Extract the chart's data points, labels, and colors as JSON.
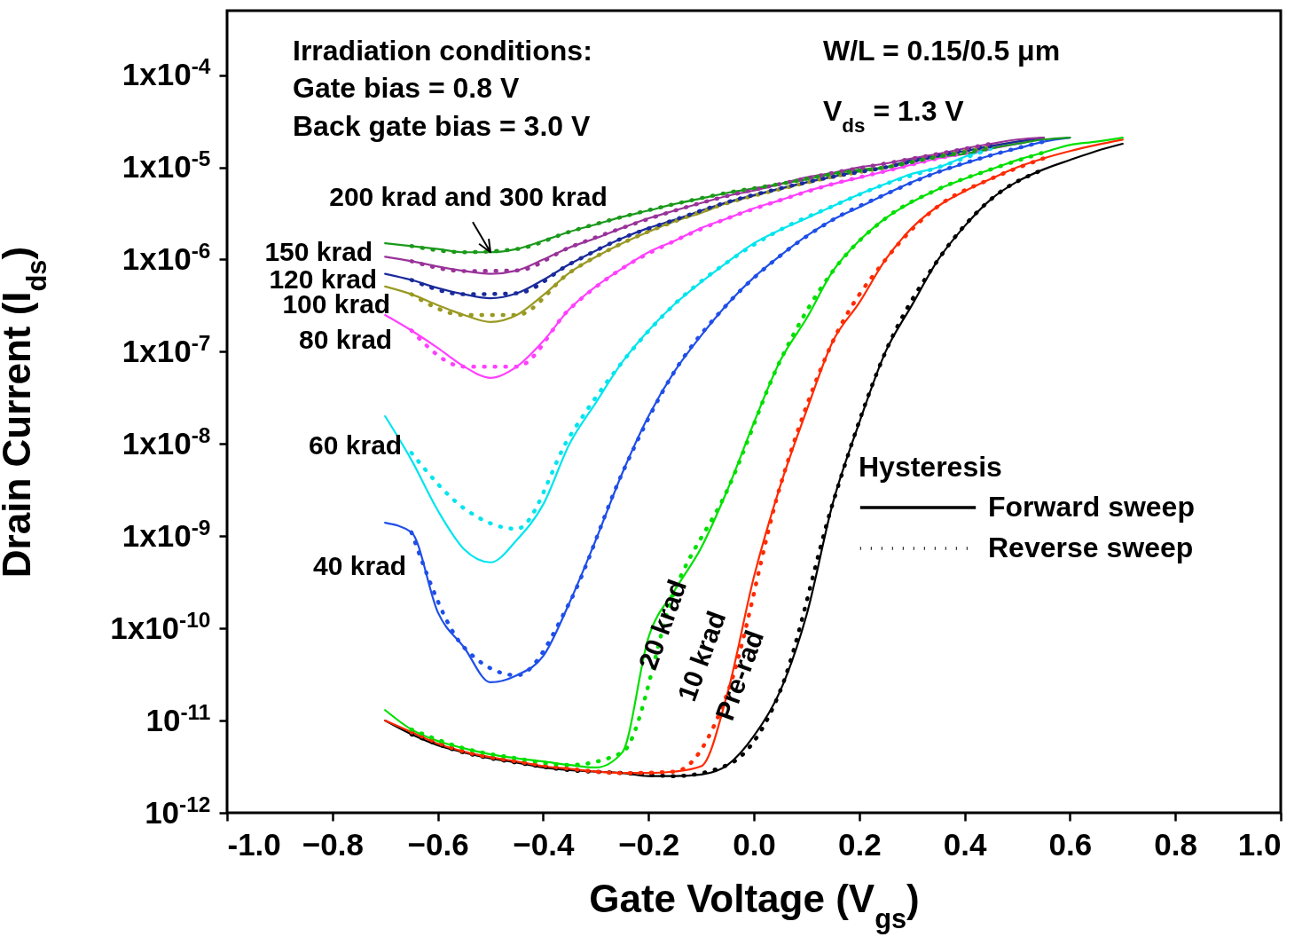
{
  "chart_data": {
    "type": "line",
    "xlabel": "Gate Voltage (V$_{gs}$)",
    "ylabel": "Drain Current (I$_{ds}$)",
    "legend_title": "Hysteresis",
    "log": true,
    "xlim": [
      -1,
      1
    ],
    "xticks": [
      {
        "value": -1,
        "label": "-1.0"
      },
      -0.8,
      -0.6,
      -0.4,
      -0.2,
      {
        "value": 0,
        "label": "0.0"
      },
      0.2,
      0.4,
      0.6,
      0.8,
      {
        "value": 1,
        "label": "1.0"
      }
    ],
    "ylim": [
      1e-12,
      0.0005
    ],
    "yticks": [
      {
        "value": 1e-12,
        "label": "10$^{-12}$"
      },
      {
        "value": 1e-11,
        "label": "10$^{-11}$"
      },
      {
        "value": 1e-10,
        "label": "1x10$^{-10}$"
      },
      {
        "value": 1e-09,
        "label": "1x10$^{-9}$"
      },
      {
        "value": 1e-08,
        "label": "1x10$^{-8}$"
      },
      {
        "value": 1e-07,
        "label": "1x10$^{-7}$"
      },
      {
        "value": 1e-06,
        "label": "1x10$^{-6}$"
      },
      {
        "value": 1e-05,
        "label": "1x10$^{-5}$"
      },
      {
        "value": 0.0001,
        "label": "1x10$^{-4}$"
      }
    ],
    "x": [
      -0.7,
      -0.65,
      -0.6,
      -0.55,
      -0.5,
      -0.45,
      -0.4,
      -0.35,
      -0.3,
      -0.25,
      -0.2,
      -0.15,
      -0.1,
      -0.05,
      0,
      0.05,
      0.1,
      0.15,
      0.2,
      0.25,
      0.3,
      0.35,
      0.4,
      0.45,
      0.5,
      0.55,
      0.6,
      0.65,
      0.7
    ],
    "series": [
      {
        "color": "#000000",
        "line_style": "solid",
        "values": [
          1e-11,
          7.1e-12,
          5.4e-12,
          4.5e-12,
          3.9e-12,
          3.5e-12,
          3.1e-12,
          2.9e-12,
          2.8e-12,
          2.7e-12,
          2.5e-12,
          2.5e-12,
          2.6e-12,
          3.3e-12,
          6.8e-12,
          2.1e-11,
          1.4e-10,
          2.3e-09,
          1.7e-08,
          1e-07,
          3.2e-07,
          1e-06,
          2.3e-06,
          4.5e-06,
          7e-06,
          9.5e-06,
          1.2e-05,
          1.5e-05,
          1.8e-05
        ]
      },
      {
        "color": "#ff2a00",
        "line_style": "solid",
        "values": [
          1e-11,
          7.5e-12,
          5.6e-12,
          4.6e-12,
          4e-12,
          3.6e-12,
          3.2e-12,
          3e-12,
          2.8e-12,
          2.7e-12,
          2.7e-12,
          2.8e-12,
          3.2e-12,
          2e-11,
          3.6e-10,
          3.5e-09,
          2.3e-08,
          1.3e-07,
          3.4e-07,
          1e-06,
          2.2e-06,
          3.8e-06,
          5.5e-06,
          7.5e-06,
          1e-05,
          1.25e-05,
          1.5e-05,
          1.75e-05,
          2e-05
        ]
      },
      {
        "color": "#00e000",
        "line_style": "solid",
        "values": [
          1.3e-11,
          8e-12,
          6e-12,
          5e-12,
          4.3e-12,
          3.9e-12,
          3.6e-12,
          3.3e-12,
          3.1e-12,
          4.5e-12,
          8e-11,
          2.6e-10,
          7.5e-10,
          3.2e-09,
          1.7e-08,
          8e-08,
          2.3e-07,
          7.5e-07,
          1.6e-06,
          2.8e-06,
          4.2e-06,
          5.8e-06,
          7.5e-06,
          9.5e-06,
          1.2e-05,
          1.45e-05,
          1.75e-05,
          1.9e-05,
          2.1e-05
        ]
      },
      {
        "color": "#1f4fe8",
        "line_style": "solid",
        "values": [
          1.4e-09,
          1.1e-09,
          1.5e-10,
          6.2e-11,
          2.6e-11,
          3.1e-11,
          5e-11,
          1.9e-10,
          9.1e-10,
          4.8e-09,
          2e-08,
          6.2e-08,
          1.5e-07,
          3.3e-07,
          6.4e-07,
          1.1e-06,
          1.8e-06,
          2.7e-06,
          3.7e-06,
          5.1e-06,
          6.9e-06,
          8.9e-06,
          1.1e-05,
          1.35e-05,
          1.6e-05,
          1.9e-05,
          2.1e-05,
          null,
          null
        ]
      },
      {
        "color": "#00e5ee",
        "line_style": "solid",
        "values": [
          2e-08,
          6.7e-09,
          1.9e-09,
          7.2e-10,
          5.2e-10,
          9.1e-10,
          2.2e-09,
          1e-08,
          2.8e-08,
          7.7e-08,
          1.7e-07,
          3.3e-07,
          5.7e-07,
          9.4e-07,
          1.5e-06,
          2.1e-06,
          2.8e-06,
          3.8e-06,
          5.1e-06,
          6.6e-06,
          8.5e-06,
          1e-05,
          1.3e-05,
          1.6e-05,
          1.8e-05,
          2.1e-05,
          null,
          null,
          null
        ]
      },
      {
        "color": "#ff40ff",
        "line_style": "solid",
        "values": [
          2.5e-07,
          1.7e-07,
          1.1e-07,
          6.9e-08,
          5.2e-08,
          6.9e-08,
          1.3e-07,
          2.9e-07,
          5.1e-07,
          8e-07,
          1.2e-06,
          1.6e-06,
          2.2e-06,
          2.8e-06,
          3.6e-06,
          4.4e-06,
          5.5e-06,
          6.6e-06,
          7.7e-06,
          9.1e-06,
          1.07e-05,
          1.25e-05,
          1.4e-05,
          1.6e-05,
          1.8e-05,
          2.1e-05,
          null,
          null,
          null
        ]
      },
      {
        "color": "#999922",
        "line_style": "solid",
        "values": [
          5.1e-07,
          4.2e-07,
          3.2e-07,
          2.5e-07,
          2.1e-07,
          2.5e-07,
          4.1e-07,
          7.2e-07,
          1.07e-06,
          1.5e-06,
          2e-06,
          2.6e-06,
          3.2e-06,
          4.1e-06,
          4.9e-06,
          5.8e-06,
          6.8e-06,
          7.9e-06,
          9.1e-06,
          1e-05,
          1.2e-05,
          1.35e-05,
          1.5e-05,
          1.7e-05,
          1.9e-05,
          2.1e-05,
          null,
          null,
          null
        ]
      },
      {
        "color": "#1a2a9a",
        "line_style": "solid",
        "values": [
          7e-07,
          6e-07,
          4.9e-07,
          4.2e-07,
          3.8e-07,
          4.3e-07,
          6e-07,
          8.9e-07,
          1.25e-06,
          1.7e-06,
          2.2e-06,
          2.7e-06,
          3.4e-06,
          4.2e-06,
          5e-06,
          5.9e-06,
          6.9e-06,
          7.9e-06,
          9.1e-06,
          1e-05,
          1.2e-05,
          1.35e-05,
          1.5e-05,
          1.7e-05,
          1.9e-05,
          2.1e-05,
          null,
          null,
          null
        ]
      },
      {
        "color": "#993399",
        "line_style": "solid",
        "values": [
          1.07e-06,
          9.6e-07,
          8.4e-07,
          7.5e-07,
          7e-07,
          7.6e-07,
          1e-06,
          1.35e-06,
          1.7e-06,
          2.2e-06,
          2.8e-06,
          3.4e-06,
          4.1e-06,
          4.9e-06,
          5.6e-06,
          6.6e-06,
          7.8e-06,
          8.7e-06,
          1e-05,
          1.1e-05,
          1.25e-05,
          1.4e-05,
          1.6e-05,
          1.8e-05,
          2e-05,
          2.1e-05,
          null,
          null,
          null
        ]
      },
      {
        "color": "#1a991a",
        "line_style": "solid",
        "values": [
          1.5e-06,
          1.4e-06,
          1.3e-06,
          1.2e-06,
          1.2e-06,
          1.3e-06,
          1.6e-06,
          2e-06,
          2.4e-06,
          2.9e-06,
          3.4e-06,
          4e-06,
          4.6e-06,
          5.3e-06,
          5.9e-06,
          6.6e-06,
          7.4e-06,
          8.5e-06,
          9.4e-06,
          1e-05,
          1.15e-05,
          1.3e-05,
          1.4e-05,
          1.6e-05,
          1.8e-05,
          2e-05,
          2.1e-05,
          null,
          null
        ]
      },
      {
        "color": "#000000",
        "line_style": "dotted",
        "x": [
          -0.65,
          -0.55,
          -0.45,
          -0.35,
          -0.25,
          -0.15,
          -0.05,
          0.05,
          0.15,
          0.25,
          0.35,
          0.45,
          0.55
        ],
        "values": [
          7.1e-12,
          4.5e-12,
          3.5e-12,
          2.9e-12,
          2.7e-12,
          2.5e-12,
          3.3e-12,
          2.1e-11,
          2.3e-09,
          1e-07,
          1e-06,
          4.5e-06,
          9.5e-06
        ]
      },
      {
        "color": "#ff2a00",
        "line_style": "dotted",
        "x": [
          -0.65,
          -0.55,
          -0.45,
          -0.35,
          -0.25,
          -0.15,
          -0.05,
          0.05,
          0.15,
          0.25,
          0.35,
          0.45,
          0.55
        ],
        "values": [
          7.5e-12,
          4.6e-12,
          3.6e-12,
          3e-12,
          2.7e-12,
          2.8e-12,
          2e-11,
          3.5e-09,
          1.3e-07,
          1e-06,
          3.8e-06,
          7.5e-06,
          1.25e-05
        ]
      },
      {
        "color": "#00e000",
        "line_style": "dotted",
        "x": [
          -0.65,
          -0.55,
          -0.45,
          -0.35,
          -0.25,
          -0.15,
          -0.05,
          0.05,
          0.15,
          0.25,
          0.35,
          0.45,
          0.55
        ],
        "values": [
          8e-12,
          5e-12,
          3.9e-12,
          3.3e-12,
          4.5e-12,
          2.6e-10,
          3.2e-09,
          8e-08,
          7.5e-07,
          2.8e-06,
          5.8e-06,
          9.5e-06,
          1.45e-05
        ]
      },
      {
        "color": "#1f4fe8",
        "line_style": "dotted",
        "x": [
          -0.65,
          -0.55,
          -0.45,
          -0.35,
          -0.25,
          -0.15,
          -0.05,
          0.05,
          0.15,
          0.25,
          0.35,
          0.45,
          0.55
        ],
        "values": [
          1.1e-09,
          6.2e-11,
          3.1e-11,
          1.9e-10,
          4.8e-09,
          6.2e-08,
          3.3e-07,
          1.1e-06,
          2.7e-06,
          5.1e-06,
          8.9e-06,
          1.35e-05,
          1.9e-05
        ]
      },
      {
        "color": "#00e5ee",
        "line_style": "dotted",
        "x": [
          -0.65,
          -0.55,
          -0.45,
          -0.35,
          -0.25,
          -0.15,
          -0.05,
          0.05,
          0.15,
          0.25,
          0.35,
          0.45
        ],
        "values": [
          8e-09,
          2e-09,
          1.2e-09,
          1.2e-08,
          7.7e-08,
          3.3e-07,
          9.4e-07,
          2.1e-06,
          3.8e-06,
          6.6e-06,
          1e-05,
          1.6e-05
        ]
      },
      {
        "color": "#ff40ff",
        "line_style": "dotted",
        "x": [
          -0.65,
          -0.55,
          -0.45,
          -0.35,
          -0.25,
          -0.15,
          -0.05,
          0.05,
          0.15,
          0.25,
          0.35,
          0.45
        ],
        "values": [
          1.7e-07,
          6.9e-08,
          6.9e-08,
          2.9e-07,
          8e-07,
          1.6e-06,
          2.8e-06,
          4.4e-06,
          6.6e-06,
          9.1e-06,
          1.25e-05,
          1.6e-05
        ]
      },
      {
        "color": "#999922",
        "line_style": "dotted",
        "x": [
          -0.65,
          -0.55,
          -0.45,
          -0.35,
          -0.25,
          -0.15,
          -0.05,
          0.05,
          0.15,
          0.25,
          0.35,
          0.45
        ],
        "values": [
          4.2e-07,
          2.5e-07,
          2.5e-07,
          7.2e-07,
          1.5e-06,
          2.6e-06,
          4.1e-06,
          5.8e-06,
          7.9e-06,
          1e-05,
          1.35e-05,
          1.7e-05
        ]
      },
      {
        "color": "#1a2a9a",
        "line_style": "dotted",
        "x": [
          -0.65,
          -0.55,
          -0.45,
          -0.35,
          -0.25,
          -0.15,
          -0.05,
          0.05,
          0.15,
          0.25,
          0.35,
          0.45
        ],
        "values": [
          6e-07,
          4.2e-07,
          4.3e-07,
          8.9e-07,
          1.7e-06,
          2.7e-06,
          4.2e-06,
          5.9e-06,
          7.9e-06,
          1e-05,
          1.35e-05,
          1.7e-05
        ]
      },
      {
        "color": "#993399",
        "line_style": "dotted",
        "x": [
          -0.65,
          -0.55,
          -0.45,
          -0.35,
          -0.25,
          -0.15,
          -0.05,
          0.05,
          0.15,
          0.25,
          0.35,
          0.45
        ],
        "values": [
          9.6e-07,
          7.5e-07,
          7.6e-07,
          1.35e-06,
          2.2e-06,
          3.4e-06,
          4.9e-06,
          6.6e-06,
          8.7e-06,
          1.1e-05,
          1.4e-05,
          1.8e-05
        ]
      },
      {
        "color": "#1a991a",
        "line_style": "dotted",
        "x": [
          -0.65,
          -0.55,
          -0.45,
          -0.35,
          -0.25,
          -0.15,
          -0.05,
          0.05,
          0.15,
          0.25,
          0.35,
          0.45
        ],
        "values": [
          1.4e-06,
          1.2e-06,
          1.3e-06,
          2e-06,
          2.9e-06,
          4e-06,
          5.3e-06,
          6.6e-06,
          8.5e-06,
          1e-05,
          1.3e-05,
          1.6e-05
        ]
      }
    ],
    "annotations": [
      {
        "text": "200 krad and 300 krad",
        "x": -0.5,
        "y": 1.2e-06
      },
      {
        "text": "150 krad",
        "x": -0.7,
        "y": 1.07e-06
      },
      {
        "text": "120 krad",
        "x": -0.7,
        "y": 7e-07
      },
      {
        "text": "100 krad",
        "x": -0.7,
        "y": 5.1e-07
      },
      {
        "text": "80 krad",
        "x": -0.7,
        "y": 2.5e-07
      },
      {
        "text": "60 krad",
        "x": -0.7,
        "y": 2e-08
      },
      {
        "text": "40 krad",
        "x": -0.7,
        "y": 1.4e-09
      },
      {
        "text": "20 krad",
        "x": -0.2,
        "y": 8e-11
      },
      {
        "text": "10 krad",
        "x": -0.05,
        "y": 2e-11
      },
      {
        "text": "Pre-rad",
        "x": 0,
        "y": 6.8e-12
      },
      "Irradiation conditions:",
      "Gate bias = 0.8 V",
      "Back gate bias = 3.0 V",
      "W/L = 0.15/0.5 μm",
      "V$_{ds}$ = 1.3 V",
      "Forward sweep",
      "Reverse sweep"
    ]
  }
}
